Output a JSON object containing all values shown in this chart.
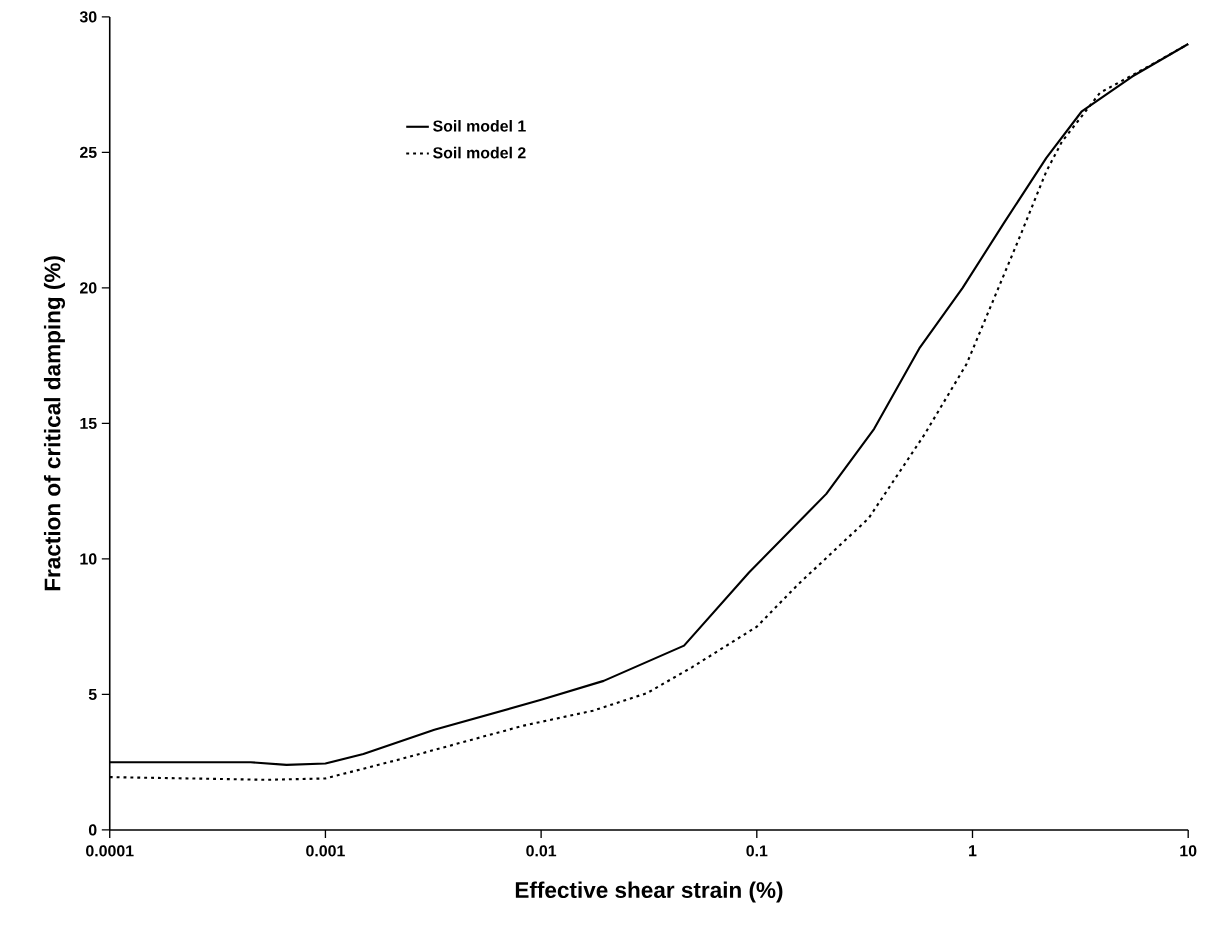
{
  "chart_data": {
    "type": "line",
    "xlabel": "Effective shear strain (%)",
    "ylabel": "Fraction of critical damping (%)",
    "log": "x",
    "xlim": [
      0.0001,
      10
    ],
    "xticks": [
      {
        "value": 0.0001,
        "label": "0.0001"
      },
      {
        "value": 0.001,
        "label": "0.001"
      },
      {
        "value": 0.01,
        "label": "0.01"
      },
      {
        "value": 0.1,
        "label": "0.1"
      },
      {
        "value": 1,
        "label": "1"
      },
      {
        "value": 10,
        "label": "10"
      }
    ],
    "ylim": [
      0,
      30
    ],
    "yticks": [
      0,
      5,
      10,
      15,
      20,
      25,
      30
    ],
    "grid": false,
    "legend": "top left",
    "marker": "none",
    "series": [
      {
        "name": "Soil model 1",
        "color": "#000000",
        "line_style": "solid",
        "x": [
          0.0001,
          0.00045,
          0.00066,
          0.001,
          0.0015,
          0.0032,
          0.01,
          0.0195,
          0.046,
          0.092,
          0.21,
          0.35,
          0.57,
          0.9,
          1.4,
          2.2,
          3.2,
          5.5,
          10
        ],
        "values": [
          2.5,
          2.5,
          2.4,
          2.45,
          2.8,
          3.7,
          4.8,
          5.5,
          6.8,
          9.5,
          12.4,
          14.8,
          17.8,
          20.0,
          22.4,
          24.8,
          26.5,
          27.8,
          29.0
        ]
      },
      {
        "name": "Soil model 2",
        "color": "#000000",
        "line_style": "dotted",
        "x": [
          0.0001,
          0.00054,
          0.001,
          0.0022,
          0.0083,
          0.0174,
          0.031,
          0.05,
          0.1,
          0.155,
          0.33,
          0.6,
          0.94,
          1.66,
          2.2,
          2.6,
          3.9,
          7,
          10
        ],
        "values": [
          1.95,
          1.85,
          1.9,
          2.6,
          3.85,
          4.4,
          5.05,
          6.0,
          7.5,
          9.05,
          11.5,
          14.6,
          17.2,
          21.9,
          24.3,
          25.4,
          27.2,
          28.3,
          29.0
        ]
      }
    ]
  }
}
